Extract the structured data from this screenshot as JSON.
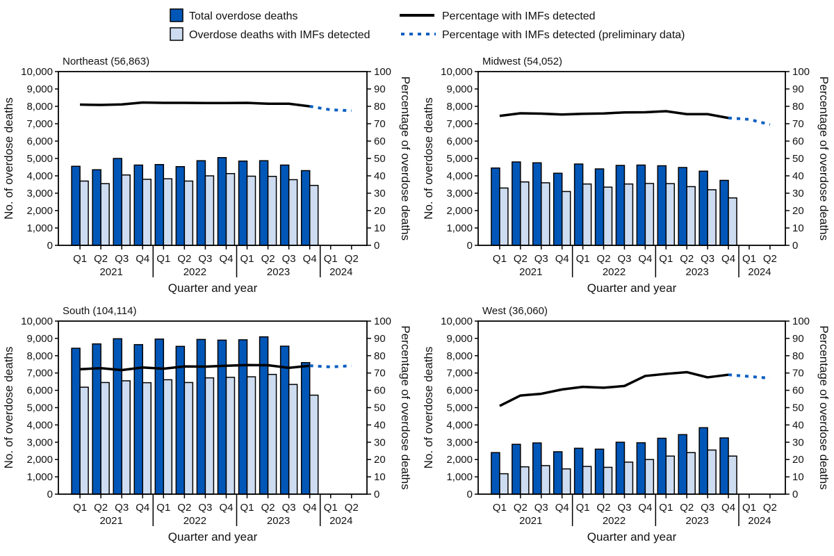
{
  "legend": {
    "total": "Total overdose deaths",
    "imf": "Overdose deaths with IMFs detected",
    "pct": "Percentage with IMFs detected",
    "pct_prelim": "Percentage with IMFs detected (preliminary data)"
  },
  "colors": {
    "total": "#0057b8",
    "imf": "#cddcf0",
    "pct": "#000000",
    "pct_prelim": "#0a5fc0"
  },
  "chart_data": [
    {
      "type": "bar",
      "title": "Northeast (56,863)",
      "quarters": [
        "Q1",
        "Q2",
        "Q3",
        "Q4",
        "Q1",
        "Q2",
        "Q3",
        "Q4",
        "Q1",
        "Q2",
        "Q3",
        "Q4",
        "Q1",
        "Q2"
      ],
      "years": [
        "2021",
        "2022",
        "2023",
        "2024"
      ],
      "xlabel": "Quarter and year",
      "ylabel": "No. of overdose deaths",
      "y2label": "Percentage of overdose deaths",
      "ylim": [
        0,
        10000
      ],
      "y2lim": [
        0,
        100
      ],
      "yticks": [
        "0",
        "1,000",
        "2,000",
        "3,000",
        "4,000",
        "5,000",
        "6,000",
        "7,000",
        "8,000",
        "9,000",
        "10,000"
      ],
      "y2ticks": [
        "0",
        "10",
        "20",
        "30",
        "40",
        "50",
        "60",
        "70",
        "80",
        "90",
        "100"
      ],
      "total": [
        4550,
        4350,
        5000,
        4620,
        4650,
        4530,
        4870,
        5050,
        4850,
        4870,
        4620,
        4300,
        null,
        null
      ],
      "imf": [
        3700,
        3550,
        4050,
        3800,
        3830,
        3700,
        4000,
        4130,
        3980,
        3970,
        3780,
        3450,
        null,
        null
      ],
      "pct": [
        81,
        80.8,
        81.1,
        82.2,
        82,
        82,
        81.9,
        81.9,
        82,
        81.5,
        81.5,
        80,
        null,
        null
      ],
      "pct_prelim": [
        null,
        null,
        null,
        null,
        null,
        null,
        null,
        null,
        null,
        null,
        null,
        80,
        78,
        77.5
      ]
    },
    {
      "type": "bar",
      "title": "Midwest (54,052)",
      "quarters": [
        "Q1",
        "Q2",
        "Q3",
        "Q4",
        "Q1",
        "Q2",
        "Q3",
        "Q4",
        "Q1",
        "Q2",
        "Q3",
        "Q4",
        "Q1",
        "Q2"
      ],
      "years": [
        "2021",
        "2022",
        "2023",
        "2024"
      ],
      "xlabel": "Quarter and year",
      "ylabel": "No. of overdose deaths",
      "y2label": "Percentage of overdose deaths",
      "ylim": [
        0,
        10000
      ],
      "y2lim": [
        0,
        100
      ],
      "yticks": [
        "0",
        "1,000",
        "2,000",
        "3,000",
        "4,000",
        "5,000",
        "6,000",
        "7,000",
        "8,000",
        "9,000",
        "10,000"
      ],
      "y2ticks": [
        "0",
        "10",
        "20",
        "30",
        "40",
        "50",
        "60",
        "70",
        "80",
        "90",
        "100"
      ],
      "total": [
        4450,
        4800,
        4750,
        4150,
        4680,
        4400,
        4600,
        4620,
        4580,
        4480,
        4270,
        3740,
        null,
        null
      ],
      "imf": [
        3300,
        3650,
        3600,
        3100,
        3530,
        3350,
        3530,
        3560,
        3550,
        3380,
        3200,
        2730,
        null,
        null
      ],
      "pct": [
        74.5,
        76,
        75.8,
        75.3,
        75.7,
        75.9,
        76.5,
        76.6,
        77.2,
        75.5,
        75.5,
        73.3,
        null,
        null
      ],
      "pct_prelim": [
        null,
        null,
        null,
        null,
        null,
        null,
        null,
        null,
        null,
        null,
        null,
        73.3,
        72.5,
        69.5
      ]
    },
    {
      "type": "bar",
      "title": "South (104,114)",
      "quarters": [
        "Q1",
        "Q2",
        "Q3",
        "Q4",
        "Q1",
        "Q2",
        "Q3",
        "Q4",
        "Q1",
        "Q2",
        "Q3",
        "Q4",
        "Q1",
        "Q2"
      ],
      "years": [
        "2021",
        "2022",
        "2023",
        "2024"
      ],
      "xlabel": "Quarter and year",
      "ylabel": "No. of overdose deaths",
      "y2label": "Percentage of overdose deaths",
      "ylim": [
        0,
        10000
      ],
      "y2lim": [
        0,
        100
      ],
      "yticks": [
        "0",
        "1,000",
        "2,000",
        "3,000",
        "4,000",
        "5,000",
        "6,000",
        "7,000",
        "8,000",
        "9,000",
        "10,000"
      ],
      "y2ticks": [
        "0",
        "10",
        "20",
        "30",
        "40",
        "50",
        "60",
        "70",
        "80",
        "90",
        "100"
      ],
      "total": [
        8430,
        8680,
        8980,
        8640,
        8960,
        8540,
        8940,
        8900,
        8920,
        9090,
        8550,
        7600,
        null,
        null
      ],
      "imf": [
        6180,
        6450,
        6550,
        6440,
        6610,
        6450,
        6720,
        6750,
        6780,
        6920,
        6340,
        5720,
        null,
        null
      ],
      "pct": [
        72.2,
        72.8,
        71.7,
        73.2,
        72.5,
        73.8,
        73.7,
        74.2,
        74.6,
        74.5,
        73,
        74.2,
        null,
        null
      ],
      "pct_prelim": [
        null,
        null,
        null,
        null,
        null,
        null,
        null,
        null,
        null,
        null,
        null,
        74.2,
        73.5,
        74.2
      ]
    },
    {
      "type": "bar",
      "title": "West (36,060)",
      "quarters": [
        "Q1",
        "Q2",
        "Q3",
        "Q4",
        "Q1",
        "Q2",
        "Q3",
        "Q4",
        "Q1",
        "Q2",
        "Q3",
        "Q4",
        "Q1",
        "Q2"
      ],
      "years": [
        "2021",
        "2022",
        "2023",
        "2024"
      ],
      "xlabel": "Quarter and year",
      "ylabel": "No. of overdose deaths",
      "y2label": "Percentage of overdose deaths",
      "ylim": [
        0,
        10000
      ],
      "y2lim": [
        0,
        100
      ],
      "yticks": [
        "0",
        "1,000",
        "2,000",
        "3,000",
        "4,000",
        "5,000",
        "6,000",
        "7,000",
        "8,000",
        "9,000",
        "10,000"
      ],
      "y2ticks": [
        "0",
        "10",
        "20",
        "30",
        "40",
        "50",
        "60",
        "70",
        "80",
        "90",
        "100"
      ],
      "total": [
        2400,
        2880,
        2960,
        2450,
        2650,
        2600,
        3000,
        2970,
        3230,
        3440,
        3840,
        3250,
        null,
        null
      ],
      "imf": [
        1180,
        1580,
        1650,
        1460,
        1600,
        1550,
        1850,
        2000,
        2200,
        2400,
        2550,
        2200,
        null,
        null
      ],
      "pct": [
        51,
        57,
        58,
        60.5,
        62,
        61.5,
        62.5,
        68.3,
        69.5,
        70.5,
        67.5,
        69,
        null,
        null
      ],
      "pct_prelim": [
        null,
        null,
        null,
        null,
        null,
        null,
        null,
        null,
        null,
        null,
        null,
        69,
        68,
        67
      ]
    }
  ]
}
